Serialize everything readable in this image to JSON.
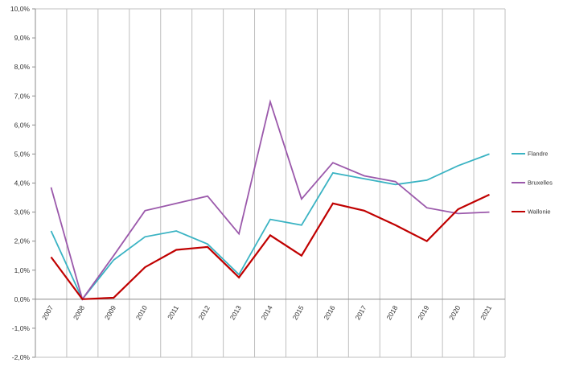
{
  "chart_data": {
    "type": "line",
    "categories": [
      "2007",
      "2008",
      "2009",
      "2010",
      "2011",
      "2012",
      "2013",
      "2014",
      "2015",
      "2016",
      "2017",
      "2018",
      "2019",
      "2020",
      "2021"
    ],
    "ylim": [
      -2.0,
      10.0
    ],
    "y_ticks": [
      -2.0,
      -1.0,
      0.0,
      1.0,
      2.0,
      3.0,
      4.0,
      5.0,
      6.0,
      7.0,
      8.0,
      9.0,
      10.0
    ],
    "y_tick_labels": [
      "-2,0%",
      "-1,0%",
      "0,0%",
      "1,0%",
      "2,0%",
      "3,0%",
      "4,0%",
      "5,0%",
      "6,0%",
      "7,0%",
      "8,0%",
      "9,0%",
      "10,0%"
    ],
    "grid": "vertical",
    "legend_position": "right",
    "series": [
      {
        "name": "Flandre",
        "color": "#3ab3c3",
        "values": [
          2.35,
          0.0,
          1.35,
          2.15,
          2.35,
          1.9,
          0.85,
          2.75,
          2.55,
          4.35,
          4.15,
          3.95,
          4.1,
          4.6,
          5.0
        ]
      },
      {
        "name": "Bruxelles",
        "color": "#9b59ab",
        "values": [
          3.85,
          0.0,
          1.5,
          3.05,
          3.3,
          3.55,
          2.25,
          6.8,
          3.45,
          4.7,
          4.25,
          4.05,
          3.15,
          2.95,
          3.0
        ]
      },
      {
        "name": "Wallonie",
        "color": "#c00000",
        "values": [
          1.45,
          0.0,
          0.05,
          1.1,
          1.7,
          1.8,
          0.75,
          2.2,
          1.5,
          3.3,
          3.05,
          2.55,
          2.0,
          3.1,
          3.6
        ]
      }
    ]
  }
}
